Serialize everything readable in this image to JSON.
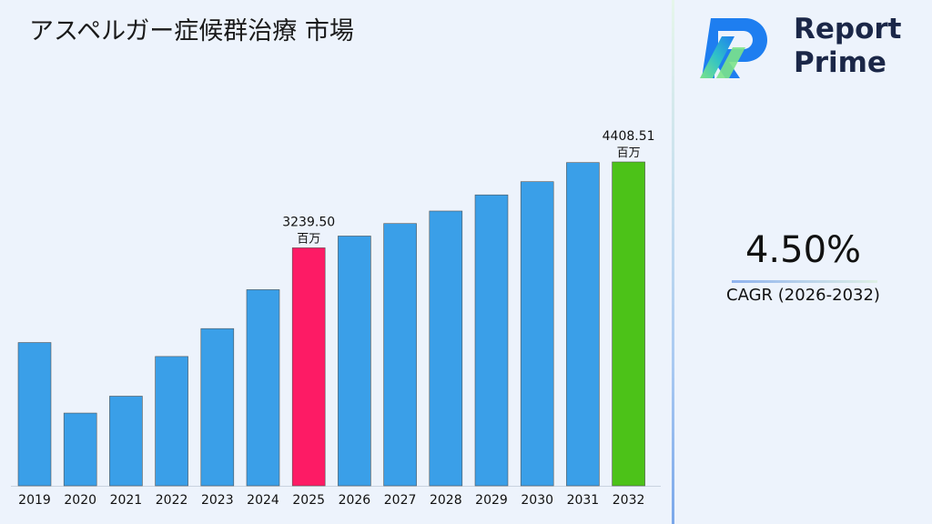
{
  "title": "アスペルガー症候群治療 市場",
  "chart_data": {
    "type": "bar",
    "title": "アスペルガー症候群治療 市場",
    "xlabel": "",
    "ylabel": "",
    "ylim": [
      0,
      4408.51
    ],
    "grid": false,
    "legend": "none",
    "categories": [
      "2019",
      "2020",
      "2021",
      "2022",
      "2023",
      "2024",
      "2025",
      "2026",
      "2027",
      "2028",
      "2029",
      "2030",
      "2031",
      "2032"
    ],
    "values": [
      1950,
      990,
      1220,
      1760,
      2140,
      2670,
      3239.5,
      3400,
      3570,
      3740,
      3960,
      4140,
      4400,
      4408.51
    ],
    "bar_colors": [
      "#3a9fe8",
      "#3a9fe8",
      "#3a9fe8",
      "#3a9fe8",
      "#3a9fe8",
      "#3a9fe8",
      "#fd1b65",
      "#3a9fe8",
      "#3a9fe8",
      "#3a9fe8",
      "#3a9fe8",
      "#3a9fe8",
      "#3a9fe8",
      "#4cc218"
    ],
    "annotations": [
      {
        "index": 6,
        "value": "3239.50",
        "unit": "百万"
      },
      {
        "index": 13,
        "value": "4408.51",
        "unit": "百万"
      }
    ]
  },
  "logo": {
    "line1": "Report",
    "line2": "Prime",
    "name": "report-prime-logo"
  },
  "cagr": {
    "value": "4.50%",
    "label": "CAGR (2026-2032)"
  },
  "colors": {
    "accent_blue": "#3a9fe8",
    "highlight_pink": "#fd1b65",
    "highlight_green": "#4cc218",
    "brand_navy": "#1b2748"
  }
}
